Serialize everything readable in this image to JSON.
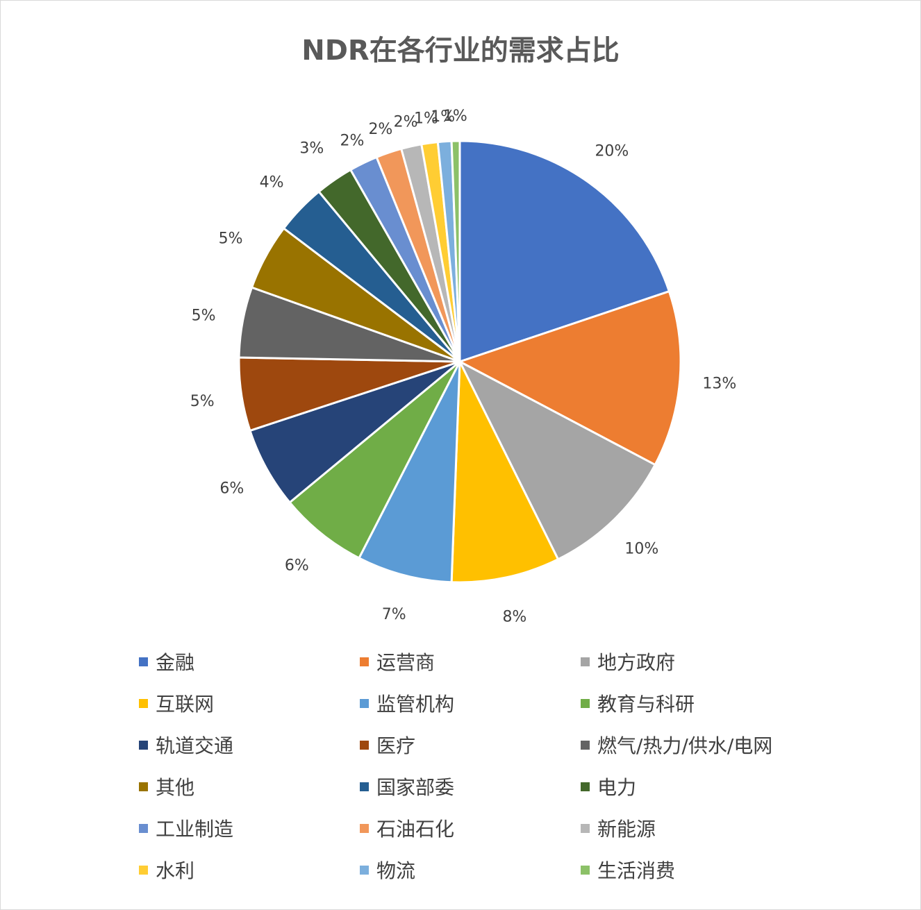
{
  "title": "NDR在各行业的需求占比",
  "chart_data": {
    "type": "pie",
    "title": "NDR在各行业的需求占比",
    "legend_position": "bottom",
    "slices": [
      {
        "label": "金融",
        "value": 20,
        "value_label": "20%",
        "color": "#4472c4"
      },
      {
        "label": "运营商",
        "value": 13,
        "value_label": "13%",
        "color": "#ed7d31"
      },
      {
        "label": "地方政府",
        "value": 10,
        "value_label": "10%",
        "color": "#a5a5a5"
      },
      {
        "label": "互联网",
        "value": 8,
        "value_label": "8%",
        "color": "#ffc000"
      },
      {
        "label": "监管机构",
        "value": 7,
        "value_label": "7%",
        "color": "#5b9bd5"
      },
      {
        "label": "教育与科研",
        "value": 6.5,
        "value_label": "6%",
        "color": "#70ad47"
      },
      {
        "label": "轨道交通",
        "value": 6,
        "value_label": "6%",
        "color": "#264478"
      },
      {
        "label": "医疗",
        "value": 5.4,
        "value_label": "5%",
        "color": "#9e480e"
      },
      {
        "label": "燃气/热力/供水/电网",
        "value": 5.2,
        "value_label": "5%",
        "color": "#636363"
      },
      {
        "label": "其他",
        "value": 4.9,
        "value_label": "5%",
        "color": "#997300"
      },
      {
        "label": "国家部委",
        "value": 3.7,
        "value_label": "4%",
        "color": "#255e91"
      },
      {
        "label": "电力",
        "value": 2.8,
        "value_label": "3%",
        "color": "#43682b"
      },
      {
        "label": "工业制造",
        "value": 2.1,
        "value_label": "2%",
        "color": "#698ed0"
      },
      {
        "label": "石油石化",
        "value": 1.9,
        "value_label": "2%",
        "color": "#f1975a"
      },
      {
        "label": "新能源",
        "value": 1.5,
        "value_label": "2%",
        "color": "#b7b7b7"
      },
      {
        "label": "水利",
        "value": 1.2,
        "value_label": "1%",
        "color": "#ffcd33"
      },
      {
        "label": "物流",
        "value": 1.0,
        "value_label": "1%",
        "color": "#7cafdd"
      },
      {
        "label": "生活消费",
        "value": 0.6,
        "value_label": "1%",
        "color": "#8cc168"
      }
    ]
  }
}
